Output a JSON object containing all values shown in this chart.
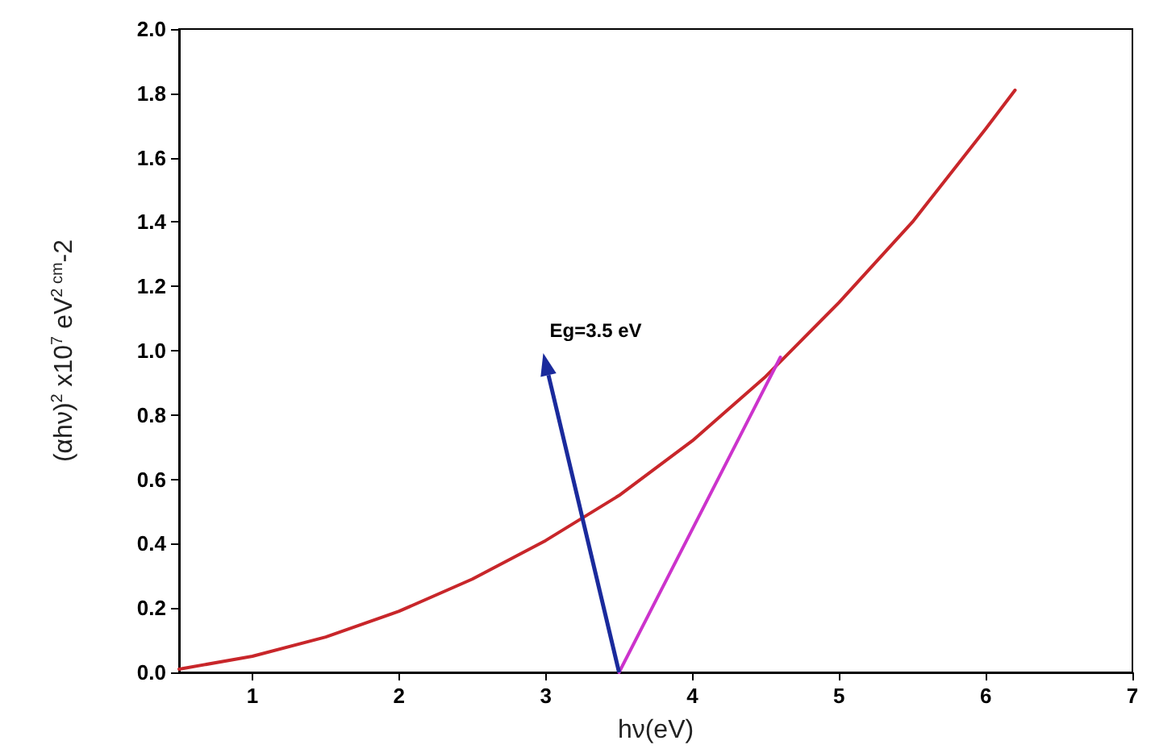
{
  "chart_data": {
    "type": "line",
    "xlabel": "hν(eV)",
    "ylabel": "(αhν)$^{2}$ x10$^{7}$ eV$^{2 cm}$-2",
    "series": [
      {
        "color": "#c8262a",
        "x": [
          0.5,
          1,
          1.5,
          2,
          2.5,
          3,
          3.5,
          4,
          4.5,
          5,
          5.5,
          6,
          6.2
        ],
        "values": [
          0.01,
          0.05,
          0.11,
          0.19,
          0.29,
          0.41,
          0.55,
          0.72,
          0.92,
          1.15,
          1.4,
          1.69,
          1.81
        ]
      },
      {
        "color": "#cc33cc",
        "x": [
          3.5,
          4.6
        ],
        "values": [
          0,
          0.98
        ]
      }
    ],
    "annotations": [
      "Eg=3.5 eV"
    ],
    "xlim": [
      0.5,
      7
    ],
    "xticks": [
      1,
      2,
      3,
      4,
      5,
      6,
      7
    ],
    "ylim": [
      0,
      2.0
    ],
    "yticks": [
      {
        "value": 0,
        "label": "0.0"
      },
      0.2,
      0.4,
      0.6,
      0.8,
      {
        "value": 1,
        "label": "1.0"
      },
      1.2,
      1.4,
      1.6,
      1.8,
      {
        "value": 2,
        "label": "2.0"
      }
    ],
    "grid": false,
    "marker": "none",
    "line_style": "solid"
  }
}
